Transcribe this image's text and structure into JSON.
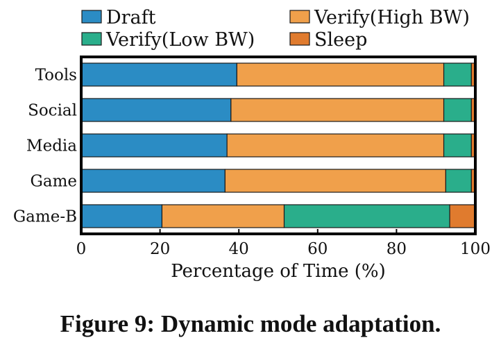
{
  "chart_data": {
    "type": "bar",
    "orientation": "horizontal",
    "stacked": true,
    "categories": [
      "Tools",
      "Social",
      "Media",
      "Game",
      "Game-B"
    ],
    "series": [
      {
        "name": "Draft",
        "color": "#2b8cc4",
        "values": [
          39.5,
          38.0,
          37.0,
          36.5,
          20.5
        ]
      },
      {
        "name": "Verify(High BW)",
        "color": "#f0a04b",
        "values": [
          52.5,
          54.0,
          55.0,
          56.0,
          31.0
        ]
      },
      {
        "name": "Verify(Low BW)",
        "color": "#2aae8b",
        "values": [
          7.0,
          7.0,
          7.0,
          6.5,
          42.0
        ]
      },
      {
        "name": "Sleep",
        "color": "#e07b2e",
        "values": [
          1.0,
          1.0,
          1.0,
          1.0,
          6.5
        ]
      }
    ],
    "xlabel": "Percentage of Time (%)",
    "ylabel": "",
    "xlim": [
      0,
      100
    ],
    "xticks": [
      "0",
      "20",
      "40",
      "60",
      "80",
      "100"
    ],
    "legend_position": "top",
    "grid": false
  },
  "caption": "Figure 9: Dynamic mode adaptation."
}
